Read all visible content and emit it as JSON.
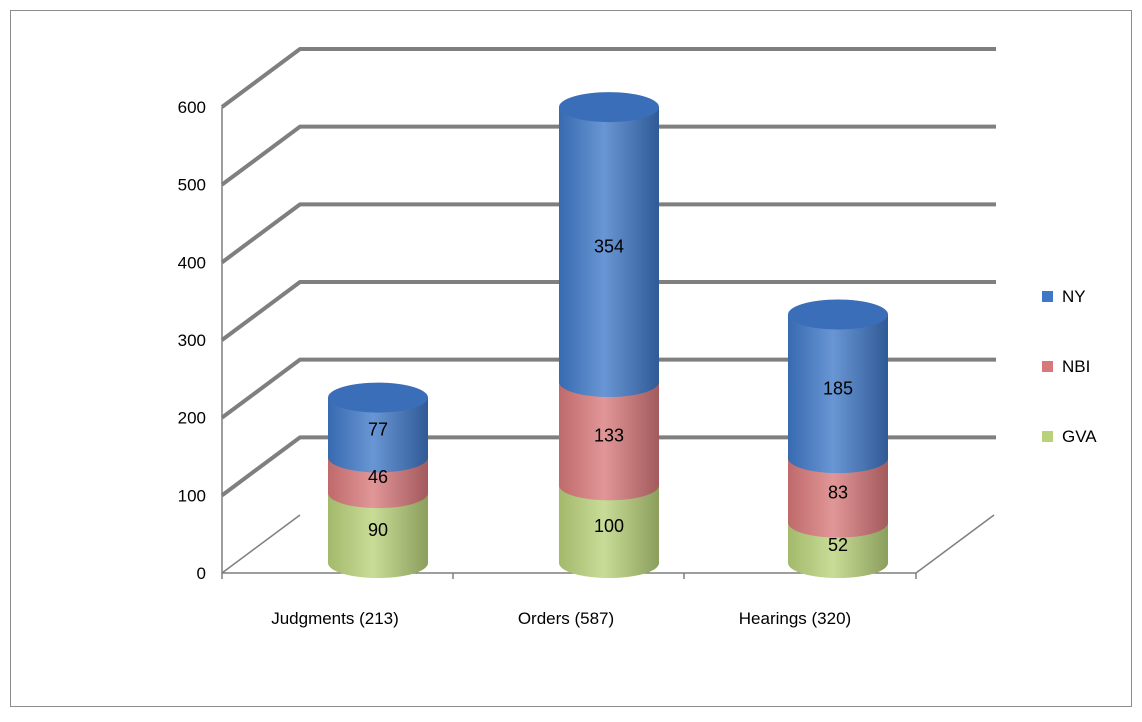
{
  "chart_data": {
    "type": "bar",
    "stacked": true,
    "style": "3d-cylinder",
    "title": "",
    "xlabel": "",
    "ylabel": "",
    "categories": [
      "Judgments (213)",
      "Orders (587)",
      "Hearings (320)"
    ],
    "series": [
      {
        "name": "GVA",
        "values": [
          90,
          100,
          52
        ],
        "color": "#b9d27a"
      },
      {
        "name": "NBI",
        "values": [
          46,
          133,
          83
        ],
        "color": "#d9787a"
      },
      {
        "name": "NY",
        "values": [
          77,
          354,
          185
        ],
        "color": "#3f78c8"
      }
    ],
    "ylim": [
      0,
      600
    ],
    "yticks": [
      0,
      100,
      200,
      300,
      400,
      500,
      600
    ],
    "grid": true,
    "legend_position": "right",
    "legend_order": [
      "NY",
      "NBI",
      "GVA"
    ]
  }
}
